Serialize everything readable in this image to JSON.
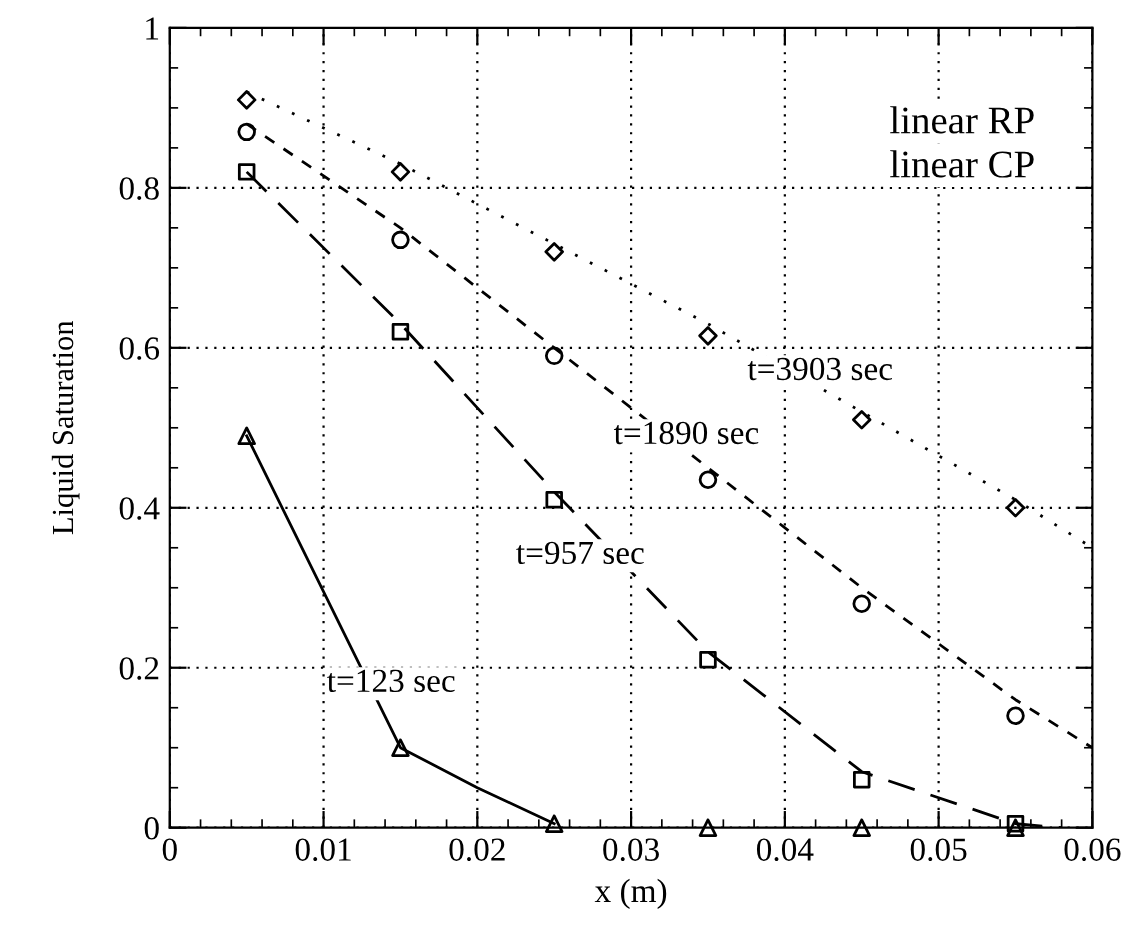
{
  "chart_data": {
    "type": "line",
    "xlabel": "x (m)",
    "ylabel": "Liquid Saturation",
    "xlim": [
      0,
      0.06
    ],
    "ylim": [
      0,
      1
    ],
    "xticks": [
      0,
      0.01,
      0.02,
      0.03,
      0.04,
      0.05,
      0.06
    ],
    "yticks": [
      0,
      0.2,
      0.4,
      0.6,
      0.8,
      1
    ],
    "grid": true,
    "series": [
      {
        "type": "scatter",
        "marker": "diamond",
        "color": "#000000",
        "x": [
          0.005,
          0.015,
          0.025,
          0.035,
          0.045,
          0.055
        ],
        "values": [
          0.91,
          0.82,
          0.72,
          0.615,
          0.51,
          0.4
        ]
      },
      {
        "line_style": "dotted",
        "color": "#000000",
        "x": [
          0.005,
          0.015,
          0.025,
          0.035,
          0.045,
          0.055,
          0.06
        ],
        "values": [
          0.92,
          0.83,
          0.73,
          0.63,
          0.52,
          0.41,
          0.35
        ]
      },
      {
        "type": "scatter",
        "marker": "circle",
        "color": "#000000",
        "x": [
          0.005,
          0.015,
          0.025,
          0.035,
          0.045,
          0.055
        ],
        "values": [
          0.87,
          0.735,
          0.59,
          0.435,
          0.28,
          0.14
        ]
      },
      {
        "line_style": "dashed",
        "color": "#000000",
        "x": [
          0.005,
          0.015,
          0.025,
          0.035,
          0.045,
          0.055,
          0.06
        ],
        "values": [
          0.88,
          0.75,
          0.6,
          0.45,
          0.3,
          0.16,
          0.1
        ]
      },
      {
        "type": "scatter",
        "marker": "square",
        "color": "#000000",
        "x": [
          0.005,
          0.015,
          0.025,
          0.035,
          0.045,
          0.055
        ],
        "values": [
          0.82,
          0.62,
          0.41,
          0.21,
          0.06,
          0.005
        ]
      },
      {
        "line_style": "longdash",
        "color": "#000000",
        "x": [
          0.005,
          0.015,
          0.025,
          0.035,
          0.045,
          0.055,
          0.058
        ],
        "values": [
          0.82,
          0.63,
          0.42,
          0.22,
          0.07,
          0.005,
          0.0
        ]
      },
      {
        "type": "scatter",
        "marker": "triangle",
        "color": "#000000",
        "x": [
          0.005,
          0.015,
          0.025,
          0.035,
          0.045,
          0.055
        ],
        "values": [
          0.49,
          0.1,
          0.005,
          0,
          0,
          0
        ]
      },
      {
        "line_style": "solid",
        "color": "#000000",
        "x": [
          0.005,
          0.015,
          0.02,
          0.025
        ],
        "values": [
          0.49,
          0.1,
          0.05,
          0.005
        ]
      }
    ],
    "annotations": [
      "t=3903 sec",
      "t=1890 sec",
      "t=957 sec",
      "t=123 sec",
      "linear RP",
      "linear CP"
    ]
  }
}
